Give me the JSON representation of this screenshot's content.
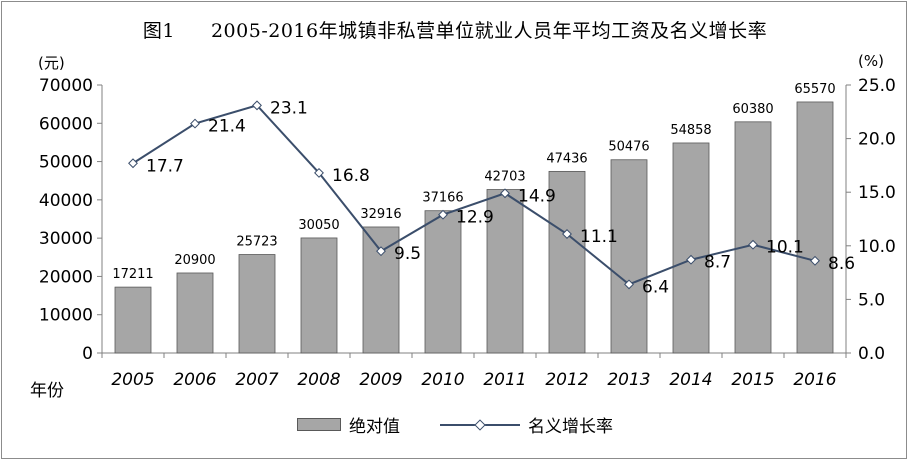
{
  "title": {
    "fig": "图1",
    "text": "2005-2016年城镇非私营单位就业人员年平均工资及名义增长率"
  },
  "left_unit": "(元)",
  "right_unit": "(%)",
  "x_axis_label": "年份",
  "legend": {
    "bar_label": "绝对值",
    "line_label": "名义增长率"
  },
  "colors": {
    "bar": "#a6a6a6",
    "bar_border": "#595959",
    "line": "#3b4e6b",
    "axis": "#808080"
  },
  "chart_data": {
    "type": "bar",
    "categories": [
      "2005",
      "2006",
      "2007",
      "2008",
      "2009",
      "2010",
      "2011",
      "2012",
      "2013",
      "2014",
      "2015",
      "2016"
    ],
    "series": [
      {
        "name": "绝对值",
        "type": "bar",
        "axis": "left",
        "values": [
          17211,
          20900,
          25723,
          30050,
          32916,
          37166,
          42703,
          47436,
          50476,
          54858,
          60380,
          65570
        ]
      },
      {
        "name": "名义增长率",
        "type": "line",
        "axis": "right",
        "values": [
          17.7,
          21.4,
          23.1,
          16.8,
          9.5,
          12.9,
          14.9,
          11.1,
          6.4,
          8.7,
          10.1,
          8.6
        ],
        "labels": [
          "17.7",
          "21.4",
          "23.1",
          "16.8",
          "9.5",
          "12.9",
          "14.9",
          "11.1",
          "6.4",
          "8.7",
          "10.1",
          "8.6"
        ]
      }
    ],
    "left_axis": {
      "ylim": [
        0,
        70000
      ],
      "ticks": [
        "0",
        "10000",
        "20000",
        "30000",
        "40000",
        "50000",
        "60000",
        "70000"
      ]
    },
    "right_axis": {
      "ylim": [
        0,
        25
      ],
      "ticks": [
        "0.0",
        "5.0",
        "10.0",
        "15.0",
        "20.0",
        "25.0"
      ]
    },
    "grid": false,
    "legend_position": "bottom"
  }
}
